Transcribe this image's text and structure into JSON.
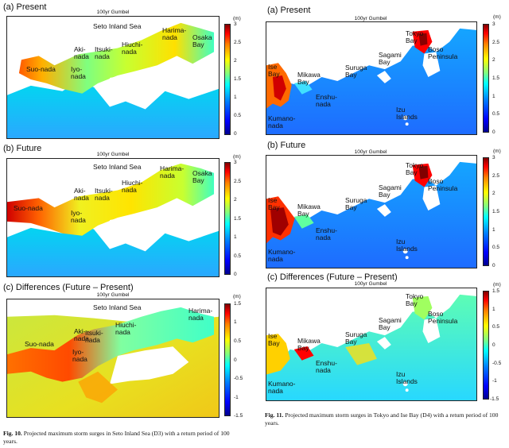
{
  "colorbar": {
    "unit": "(m)",
    "ticks_abs": [
      "3",
      "2.5",
      "2",
      "1.5",
      "1",
      "0.5",
      "0"
    ],
    "ticks_diff": [
      "1.5",
      "1",
      "0.5",
      "0",
      "-0.5",
      "-1",
      "-1.5"
    ]
  },
  "fig10": {
    "panels": [
      {
        "label": "(a)  Present",
        "title": "100yr Gumbel"
      },
      {
        "label": "(b)  Future",
        "title": "100yr Gumbel"
      },
      {
        "label": "(c)  Differences (Future – Present)",
        "title": "100yr Gumbel"
      }
    ],
    "places": {
      "seto": "Seto Inland Sea",
      "harima": "Harima-\nnada",
      "osaka": "Osaka\nBay",
      "hiuchi": "Hiuchi-\nnada",
      "itsuki": "Itsuki-\nnada",
      "aki": "Aki-\nnada",
      "suo": "Suo-nada",
      "iyo": "Iyo-\nnada"
    },
    "caption_label": "Fig. 10.",
    "caption_text": " Projected maximum storm surges in Seto Inland Sea (D3) with a return period of 100 years."
  },
  "fig11": {
    "panels": [
      {
        "label": "(a)  Present",
        "title": "100yr Gumbel"
      },
      {
        "label": "(b)  Future",
        "title": "100yr Gumbel"
      },
      {
        "label": "(c)  Differences (Future – Present)",
        "title": "100yr Gumbel"
      }
    ],
    "places": {
      "tokyo": "Tokyo\nBay",
      "boso": "Boso\nPeninsula",
      "sagami": "Sagami\nBay",
      "suruga": "Suruga\nBay",
      "ise": "Ise\nBay",
      "mikawa": "Mikawa\nBay",
      "enshu": "Enshu-\nnada",
      "izu": "Izu\nIslands",
      "kumano": "Kumano-\nnada"
    },
    "caption_label": "Fig. 11.",
    "caption_text": " Projected maximum storm surges in Tokyo and Ise Bay (D4) with a return period of 100 years."
  }
}
